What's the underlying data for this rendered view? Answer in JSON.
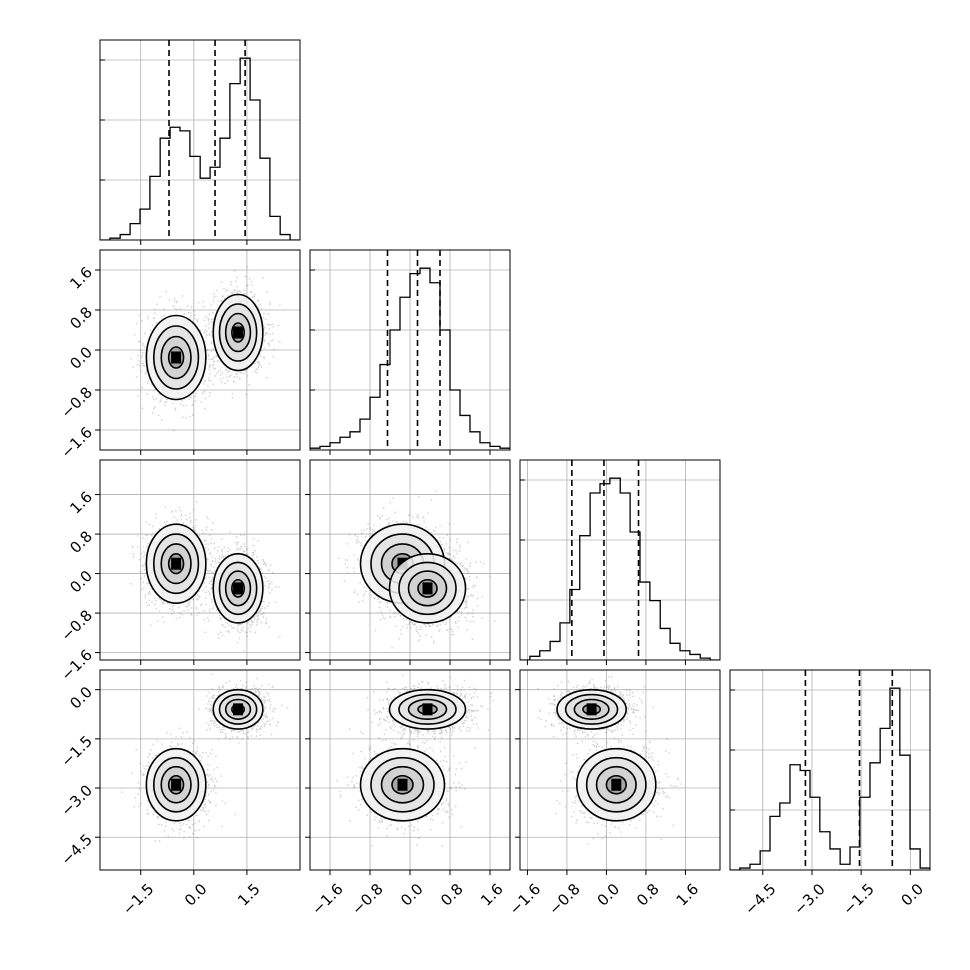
{
  "chart_data": {
    "type": "corner",
    "n_params": 4,
    "param_labels": [
      "",
      "",
      "",
      ""
    ],
    "ranges": [
      [
        -2.65,
        3.0
      ],
      [
        -2.0,
        2.0
      ],
      [
        -1.75,
        2.3
      ],
      [
        -5.5,
        0.6
      ]
    ],
    "ticks": [
      [
        -1.5,
        0.0,
        1.5
      ],
      [
        -1.6,
        -0.8,
        0.0,
        0.8,
        1.6
      ],
      [
        -1.6,
        -0.8,
        0.0,
        0.8,
        1.6
      ],
      [
        -4.5,
        -3.0,
        -1.5,
        0.0
      ]
    ],
    "tick_labels": [
      [
        "−1.5",
        "0.0",
        "1.5"
      ],
      [
        "−1.6",
        "−0.8",
        "0.0",
        "0.8",
        "1.6"
      ],
      [
        "−1.6",
        "−0.8",
        "0.0",
        "0.8",
        "1.6"
      ],
      [
        "−4.5",
        "−3.0",
        "−1.5",
        "0.0"
      ]
    ],
    "quantiles": [
      [
        -0.7,
        0.6,
        1.45
      ],
      [
        -0.45,
        0.15,
        0.6
      ],
      [
        -0.7,
        -0.05,
        0.65
      ],
      [
        -3.2,
        -1.55,
        -0.55
      ]
    ],
    "histograms": [
      {
        "edges": [
          -2.65,
          -2.37,
          -2.08,
          -1.8,
          -1.52,
          -1.24,
          -0.95,
          -0.67,
          -0.39,
          -0.11,
          0.18,
          0.46,
          0.74,
          1.02,
          1.31,
          1.59,
          1.87,
          2.15,
          2.44,
          2.72,
          3.0
        ],
        "counts": [
          0,
          0.01,
          0.03,
          0.09,
          0.17,
          0.35,
          0.56,
          0.62,
          0.6,
          0.46,
          0.34,
          0.4,
          0.56,
          0.86,
          1.0,
          0.77,
          0.45,
          0.13,
          0.03,
          0
        ]
      },
      {
        "edges": [
          -2.0,
          -1.8,
          -1.6,
          -1.4,
          -1.2,
          -1.0,
          -0.8,
          -0.6,
          -0.4,
          -0.2,
          0.0,
          0.2,
          0.4,
          0.6,
          0.8,
          1.0,
          1.2,
          1.4,
          1.6,
          1.8,
          2.0
        ],
        "counts": [
          0.01,
          0.02,
          0.04,
          0.07,
          0.1,
          0.17,
          0.29,
          0.47,
          0.66,
          0.84,
          0.97,
          1.0,
          0.92,
          0.66,
          0.33,
          0.19,
          0.1,
          0.04,
          0.02,
          0.01
        ]
      },
      {
        "edges": [
          -1.75,
          -1.55,
          -1.35,
          -1.14,
          -0.94,
          -0.74,
          -0.54,
          -0.33,
          -0.13,
          0.07,
          0.28,
          0.48,
          0.68,
          0.88,
          1.09,
          1.29,
          1.49,
          1.69,
          1.9,
          2.1,
          2.3
        ],
        "counts": [
          0,
          0.02,
          0.05,
          0.1,
          0.2,
          0.38,
          0.67,
          0.9,
          0.95,
          0.98,
          0.9,
          0.69,
          0.42,
          0.32,
          0.17,
          0.09,
          0.05,
          0.03,
          0.01,
          0
        ]
      },
      {
        "edges": [
          -5.5,
          -5.2,
          -4.89,
          -4.58,
          -4.28,
          -3.98,
          -3.67,
          -3.36,
          -3.06,
          -2.76,
          -2.45,
          -2.14,
          -1.84,
          -1.54,
          -1.23,
          -0.92,
          -0.62,
          -0.32,
          -0.01,
          0.3,
          0.6
        ],
        "counts": [
          0,
          0.01,
          0.03,
          0.1,
          0.28,
          0.35,
          0.55,
          0.52,
          0.38,
          0.2,
          0.11,
          0.03,
          0.12,
          0.38,
          0.56,
          0.74,
          0.95,
          0.6,
          0.11,
          0.01
        ]
      }
    ],
    "modes": [
      {
        "weight": 0.45,
        "mean": [
          -0.5,
          -0.15,
          0.2,
          -2.9
        ],
        "sd": [
          0.42,
          0.42,
          0.4,
          0.55
        ]
      },
      {
        "weight": 0.55,
        "mean": [
          1.25,
          0.35,
          -0.3,
          -0.6
        ],
        "sd": [
          0.35,
          0.38,
          0.35,
          0.3
        ]
      }
    ],
    "contour_levels": [
      "0.5σ",
      "1σ",
      "1.5σ",
      "2σ"
    ]
  }
}
